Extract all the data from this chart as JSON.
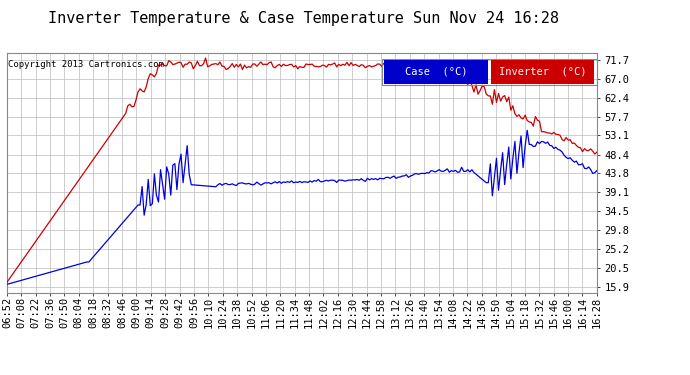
{
  "title": "Inverter Temperature & Case Temperature Sun Nov 24 16:28",
  "copyright": "Copyright 2013 Cartronics.com",
  "legend_labels": [
    "Case  (°C)",
    "Inverter  (°C)"
  ],
  "legend_colors_bg": [
    "#0000cc",
    "#cc0000"
  ],
  "legend_text_color": "#ffffff",
  "line_colors": [
    "#0000dd",
    "#cc0000"
  ],
  "yticks": [
    15.9,
    20.5,
    25.2,
    29.8,
    34.5,
    39.1,
    43.8,
    48.4,
    53.1,
    57.7,
    62.4,
    67.0,
    71.7
  ],
  "ylim": [
    14.5,
    73.5
  ],
  "bg_color": "#ffffff",
  "plot_bg_color": "#ffffff",
  "grid_color": "#bbbbbb",
  "title_fontsize": 11,
  "axis_fontsize": 7.5,
  "time_labels": [
    "06:52",
    "07:08",
    "07:22",
    "07:36",
    "07:50",
    "08:04",
    "08:18",
    "08:32",
    "08:46",
    "09:00",
    "09:14",
    "09:28",
    "09:42",
    "09:56",
    "10:10",
    "10:24",
    "10:38",
    "10:52",
    "11:06",
    "11:20",
    "11:34",
    "11:48",
    "12:02",
    "12:16",
    "12:30",
    "12:44",
    "12:58",
    "13:12",
    "13:26",
    "13:40",
    "13:54",
    "14:08",
    "14:22",
    "14:36",
    "14:50",
    "15:04",
    "15:18",
    "15:32",
    "15:46",
    "16:00",
    "16:14",
    "16:28"
  ]
}
